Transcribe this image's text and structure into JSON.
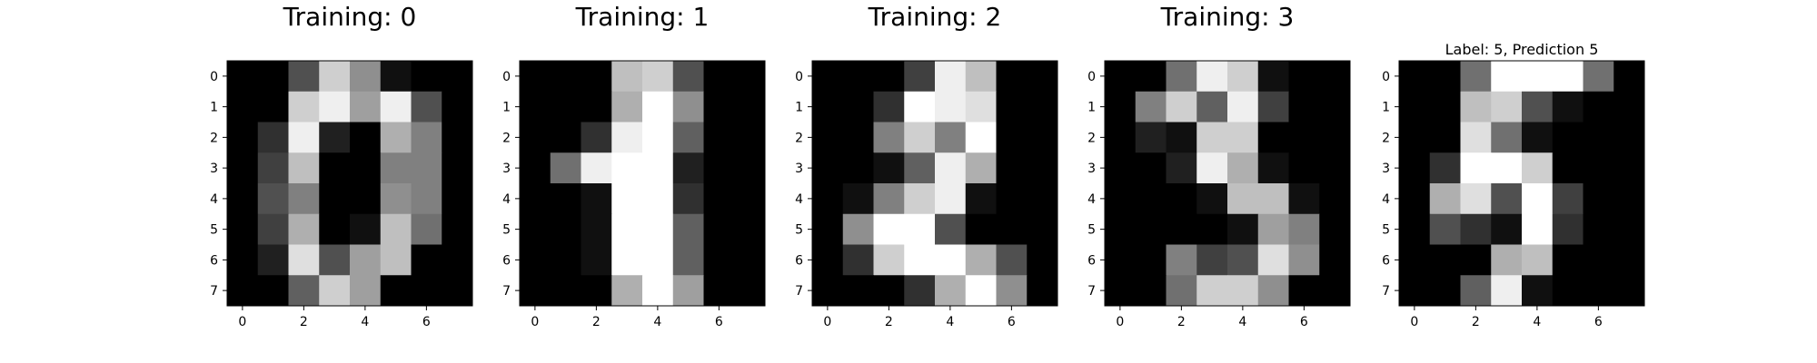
{
  "chart_data": [
    {
      "type": "heatmap",
      "title": "Training: 0",
      "colormap": "gray",
      "value_range": [
        0,
        16
      ],
      "x_ticks": [
        0,
        2,
        4,
        6
      ],
      "y_ticks": [
        0,
        1,
        2,
        3,
        4,
        5,
        6,
        7
      ],
      "grid": false,
      "values": [
        [
          0,
          0,
          5,
          13,
          9,
          1,
          0,
          0
        ],
        [
          0,
          0,
          13,
          15,
          10,
          15,
          5,
          0
        ],
        [
          0,
          3,
          15,
          2,
          0,
          11,
          8,
          0
        ],
        [
          0,
          4,
          12,
          0,
          0,
          8,
          8,
          0
        ],
        [
          0,
          5,
          8,
          0,
          0,
          9,
          8,
          0
        ],
        [
          0,
          4,
          11,
          0,
          1,
          12,
          7,
          0
        ],
        [
          0,
          2,
          14,
          5,
          10,
          12,
          0,
          0
        ],
        [
          0,
          0,
          6,
          13,
          10,
          0,
          0,
          0
        ]
      ]
    },
    {
      "type": "heatmap",
      "title": "Training: 1",
      "colormap": "gray",
      "value_range": [
        0,
        16
      ],
      "x_ticks": [
        0,
        2,
        4,
        6
      ],
      "y_ticks": [
        0,
        1,
        2,
        3,
        4,
        5,
        6,
        7
      ],
      "grid": false,
      "values": [
        [
          0,
          0,
          0,
          12,
          13,
          5,
          0,
          0
        ],
        [
          0,
          0,
          0,
          11,
          16,
          9,
          0,
          0
        ],
        [
          0,
          0,
          3,
          15,
          16,
          6,
          0,
          0
        ],
        [
          0,
          7,
          15,
          16,
          16,
          2,
          0,
          0
        ],
        [
          0,
          0,
          1,
          16,
          16,
          3,
          0,
          0
        ],
        [
          0,
          0,
          1,
          16,
          16,
          6,
          0,
          0
        ],
        [
          0,
          0,
          1,
          16,
          16,
          6,
          0,
          0
        ],
        [
          0,
          0,
          0,
          11,
          16,
          10,
          0,
          0
        ]
      ]
    },
    {
      "type": "heatmap",
      "title": "Training: 2",
      "colormap": "gray",
      "value_range": [
        0,
        16
      ],
      "x_ticks": [
        0,
        2,
        4,
        6
      ],
      "y_ticks": [
        0,
        1,
        2,
        3,
        4,
        5,
        6,
        7
      ],
      "grid": false,
      "values": [
        [
          0,
          0,
          0,
          4,
          15,
          12,
          0,
          0
        ],
        [
          0,
          0,
          3,
          16,
          15,
          14,
          0,
          0
        ],
        [
          0,
          0,
          8,
          13,
          8,
          16,
          0,
          0
        ],
        [
          0,
          0,
          1,
          6,
          15,
          11,
          0,
          0
        ],
        [
          0,
          1,
          8,
          13,
          15,
          1,
          0,
          0
        ],
        [
          0,
          9,
          16,
          16,
          5,
          0,
          0,
          0
        ],
        [
          0,
          3,
          13,
          16,
          16,
          11,
          5,
          0
        ],
        [
          0,
          0,
          0,
          3,
          11,
          16,
          9,
          0
        ]
      ]
    },
    {
      "type": "heatmap",
      "title": "Training: 3",
      "colormap": "gray",
      "value_range": [
        0,
        16
      ],
      "x_ticks": [
        0,
        2,
        4,
        6
      ],
      "y_ticks": [
        0,
        1,
        2,
        3,
        4,
        5,
        6,
        7
      ],
      "grid": false,
      "values": [
        [
          0,
          0,
          7,
          15,
          13,
          1,
          0,
          0
        ],
        [
          0,
          8,
          13,
          6,
          15,
          4,
          0,
          0
        ],
        [
          0,
          2,
          1,
          13,
          13,
          0,
          0,
          0
        ],
        [
          0,
          0,
          2,
          15,
          11,
          1,
          0,
          0
        ],
        [
          0,
          0,
          0,
          1,
          12,
          12,
          1,
          0
        ],
        [
          0,
          0,
          0,
          0,
          1,
          10,
          8,
          0
        ],
        [
          0,
          0,
          8,
          4,
          5,
          14,
          9,
          0
        ],
        [
          0,
          0,
          7,
          13,
          13,
          9,
          0,
          0
        ]
      ]
    },
    {
      "type": "heatmap",
      "title": "Label: 5, Prediction 5",
      "colormap": "gray",
      "value_range": [
        0,
        16
      ],
      "x_ticks": [
        0,
        2,
        4,
        6
      ],
      "y_ticks": [
        0,
        1,
        2,
        3,
        4,
        5,
        6,
        7
      ],
      "grid": false,
      "values": [
        [
          0,
          0,
          7,
          16,
          16,
          16,
          7,
          0
        ],
        [
          0,
          0,
          12,
          13,
          5,
          1,
          0,
          0
        ],
        [
          0,
          0,
          14,
          7,
          1,
          0,
          0,
          0
        ],
        [
          0,
          3,
          16,
          16,
          13,
          0,
          0,
          0
        ],
        [
          0,
          11,
          14,
          5,
          16,
          4,
          0,
          0
        ],
        [
          0,
          5,
          3,
          1,
          16,
          3,
          0,
          0
        ],
        [
          0,
          0,
          0,
          11,
          12,
          0,
          0,
          0
        ],
        [
          0,
          0,
          6,
          15,
          1,
          0,
          0,
          0
        ]
      ]
    }
  ]
}
